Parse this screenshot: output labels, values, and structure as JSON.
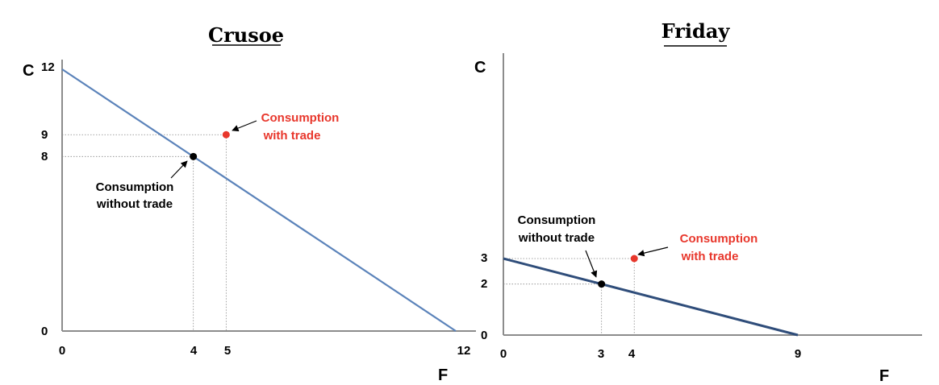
{
  "chart_data": [
    {
      "type": "line",
      "title": "Crusoe",
      "xlabel": "F",
      "ylabel": "C",
      "xlim": [
        0,
        12
      ],
      "ylim": [
        0,
        12
      ],
      "x_ticks": [
        "0",
        "4",
        "5",
        "12"
      ],
      "y_ticks": [
        "0",
        "8",
        "9",
        "12"
      ],
      "line_color": "#5b83ba",
      "series": [
        {
          "x": [
            0,
            12
          ],
          "y": [
            12,
            0
          ]
        }
      ],
      "points": [
        {
          "x": 4,
          "y": 8,
          "color": "#000000",
          "label": [
            "Consumption",
            "without trade"
          ]
        },
        {
          "x": 5,
          "y": 9,
          "color": "#e8372c",
          "label": [
            "Consumption",
            "with trade"
          ]
        }
      ]
    },
    {
      "type": "line",
      "title": "Friday",
      "xlabel": "F",
      "ylabel": "C",
      "xlim": [
        0,
        12
      ],
      "ylim": [
        0,
        12
      ],
      "x_ticks": [
        "0",
        "3",
        "4",
        "9"
      ],
      "y_ticks": [
        "0",
        "2",
        "3"
      ],
      "line_color": "#2f4d7a",
      "series": [
        {
          "x": [
            0,
            9
          ],
          "y": [
            3,
            0
          ]
        }
      ],
      "points": [
        {
          "x": 3,
          "y": 2,
          "color": "#000000",
          "label": [
            "Consumption",
            "without trade"
          ]
        },
        {
          "x": 4,
          "y": 3,
          "color": "#e8372c",
          "label": [
            "Consumption",
            "with trade"
          ]
        }
      ]
    }
  ]
}
